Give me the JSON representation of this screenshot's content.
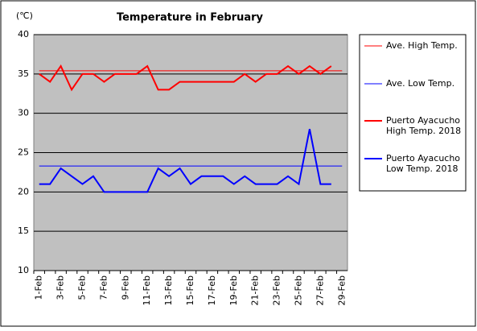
{
  "chart_data": {
    "type": "line",
    "title": "Temperature in February",
    "y_label": "(℃)",
    "categories": [
      "1-Feb",
      null,
      "3-Feb",
      null,
      "5-Feb",
      null,
      "7-Feb",
      null,
      "9-Feb",
      null,
      "11-Feb",
      null,
      "13-Feb",
      null,
      "15-Feb",
      null,
      "17-Feb",
      null,
      "19-Feb",
      null,
      "21-Feb",
      null,
      "23-Feb",
      null,
      "25-Feb",
      null,
      "27-Feb",
      null,
      "29-Feb"
    ],
    "ylim": [
      10,
      40
    ],
    "yticks": [
      10,
      15,
      20,
      25,
      30,
      35,
      40
    ],
    "grid": true,
    "series": [
      {
        "name": "Ave. High Temp.",
        "color": "#ff0000",
        "width": 1,
        "values": [
          35.4,
          35.4,
          35.4,
          35.4,
          35.4,
          35.4,
          35.4,
          35.4,
          35.4,
          35.4,
          35.4,
          35.4,
          35.4,
          35.4,
          35.4,
          35.4,
          35.4,
          35.4,
          35.4,
          35.4,
          35.4,
          35.4,
          35.4,
          35.4,
          35.4,
          35.4,
          35.4,
          35.4,
          35.4
        ]
      },
      {
        "name": "Ave. Low Temp.",
        "color": "#0000ff",
        "width": 1,
        "values": [
          23.3,
          23.3,
          23.3,
          23.3,
          23.3,
          23.3,
          23.3,
          23.3,
          23.3,
          23.3,
          23.3,
          23.3,
          23.3,
          23.3,
          23.3,
          23.3,
          23.3,
          23.3,
          23.3,
          23.3,
          23.3,
          23.3,
          23.3,
          23.3,
          23.3,
          23.3,
          23.3,
          23.3,
          23.3
        ]
      },
      {
        "name": "Puerto Ayacucho High Temp. 2018",
        "color": "#ff0000",
        "width": 2,
        "values": [
          35,
          34,
          36,
          33,
          35,
          35,
          34,
          35,
          35,
          35,
          36,
          33,
          33,
          34,
          34,
          34,
          34,
          34,
          34,
          35,
          34,
          35,
          35,
          36,
          35,
          36,
          35,
          36,
          null
        ]
      },
      {
        "name": "Puerto Ayacucho Low Temp. 2018",
        "color": "#0000ff",
        "width": 2,
        "values": [
          21,
          21,
          23,
          22,
          21,
          22,
          20,
          20,
          20,
          20,
          20,
          23,
          22,
          23,
          21,
          22,
          22,
          22,
          21,
          22,
          21,
          21,
          21,
          22,
          21,
          28,
          21,
          21,
          null
        ]
      }
    ]
  }
}
